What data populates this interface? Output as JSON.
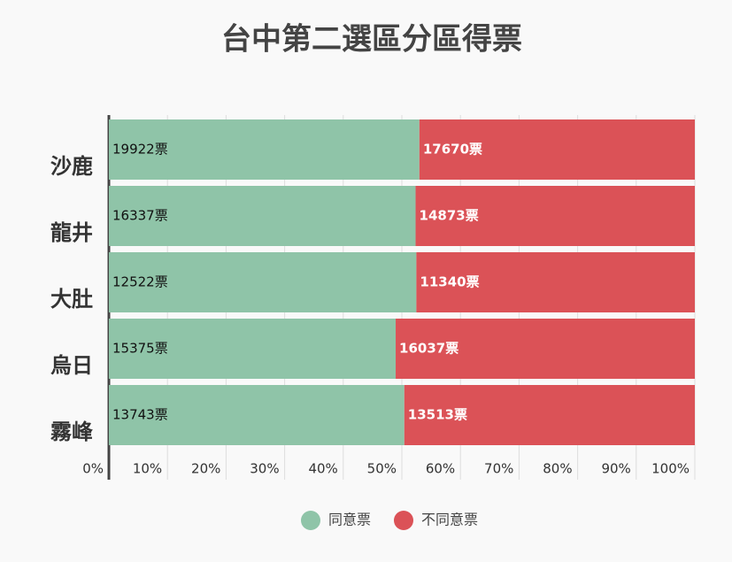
{
  "chart_data": {
    "type": "stacked-bar-100",
    "title": "台中第二選區分區得票",
    "categories": [
      "沙鹿",
      "龍井",
      "大肚",
      "烏日",
      "霧峰"
    ],
    "series": [
      {
        "name": "同意票",
        "color": "#8fc4a8",
        "values": [
          19922,
          16337,
          12522,
          15375,
          13743
        ],
        "value_labels": [
          "19922票",
          "16337票",
          "12522票",
          "15375票",
          "13743票"
        ]
      },
      {
        "name": "不同意票",
        "color": "#db5257",
        "values": [
          17670,
          14873,
          11340,
          16037,
          13513
        ],
        "value_labels": [
          "17670票",
          "14873票",
          "11340票",
          "16037票",
          "13513票"
        ]
      }
    ],
    "xlim": [
      0,
      100
    ],
    "xticks": [
      {
        "value": 0,
        "label": "0%"
      },
      {
        "value": 10,
        "label": "10%"
      },
      {
        "value": 20,
        "label": "20%"
      },
      {
        "value": 30,
        "label": "30%"
      },
      {
        "value": 40,
        "label": "40%"
      },
      {
        "value": 50,
        "label": "50%"
      },
      {
        "value": 60,
        "label": "60%"
      },
      {
        "value": 70,
        "label": "70%"
      },
      {
        "value": 80,
        "label": "80%"
      },
      {
        "value": 90,
        "label": "90%"
      },
      {
        "value": 100,
        "label": "100%"
      }
    ],
    "grid": true,
    "legend": "bottom"
  }
}
